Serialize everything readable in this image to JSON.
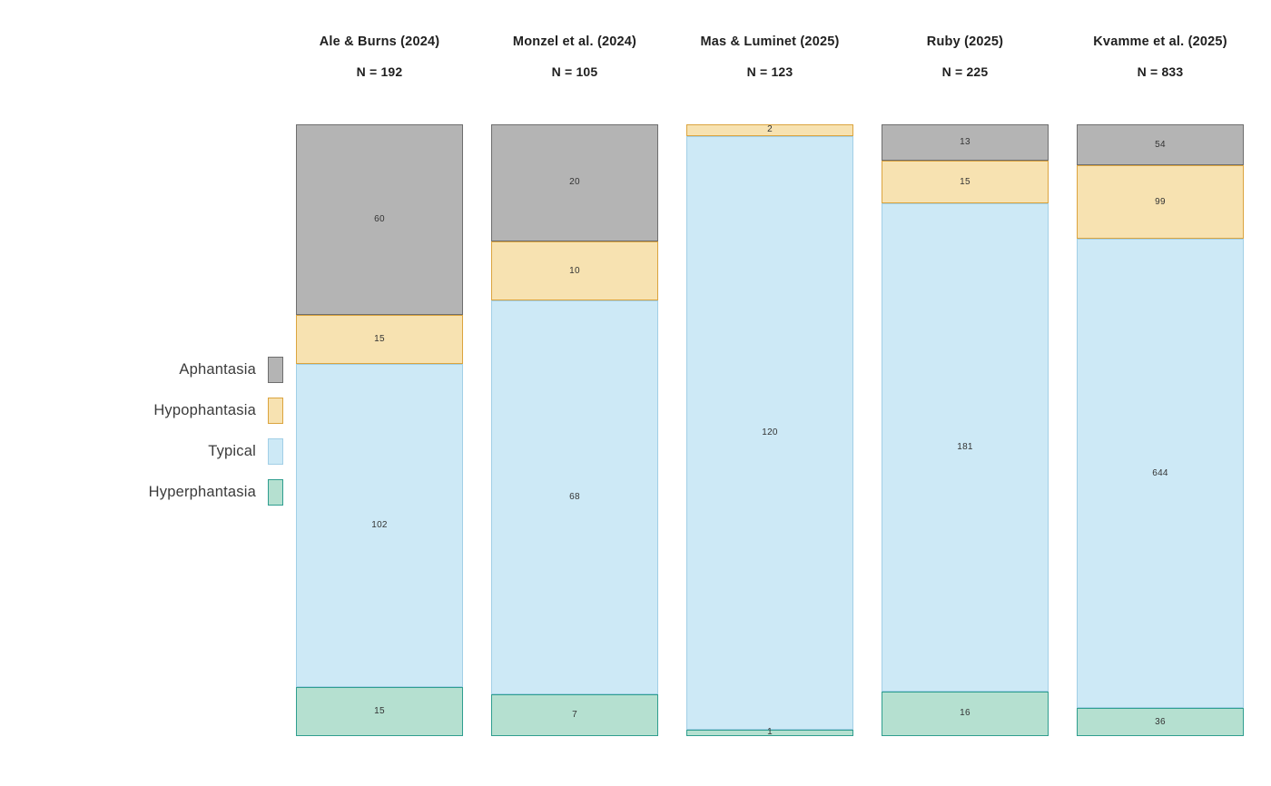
{
  "legend": {
    "items": [
      {
        "key": "aphantasia",
        "label": "Aphantasia",
        "fill": "#b4b4b4",
        "border": "#6e6e6e"
      },
      {
        "key": "hypophantasia",
        "label": "Hypophantasia",
        "fill": "#f7e2b1",
        "border": "#dba43e"
      },
      {
        "key": "typical",
        "label": "Typical",
        "fill": "#cde9f6",
        "border": "#a2cfe6"
      },
      {
        "key": "hyperphantasia",
        "label": "Hyperphantasia",
        "fill": "#b5e0d0",
        "border": "#2f9e8f"
      }
    ]
  },
  "chart_data": {
    "type": "bar",
    "subtype": "100-percent-stacked-columns",
    "title": "",
    "xlabel": "",
    "ylabel": "",
    "grid": false,
    "legend_position": "left",
    "categories": [
      "Aphantasia",
      "Hypophantasia",
      "Typical",
      "Hyperphantasia"
    ],
    "category_colors": [
      "#b4b4b4",
      "#f7e2b1",
      "#cde9f6",
      "#b5e0d0"
    ],
    "category_border_colors": [
      "#6e6e6e",
      "#dba43e",
      "#a2cfe6",
      "#2f9e8f"
    ],
    "studies": [
      {
        "label": "Ale & Burns (2024)",
        "n_label": "N = 192",
        "n": 192,
        "values": [
          60,
          15,
          102,
          15
        ]
      },
      {
        "label": "Monzel et al. (2024)",
        "n_label": "N = 105",
        "n": 105,
        "values": [
          20,
          10,
          68,
          7
        ]
      },
      {
        "label": "Mas & Luminet (2025)",
        "n_label": "N = 123",
        "n": 123,
        "values": [
          0,
          2,
          120,
          1
        ]
      },
      {
        "label": "Ruby (2025)",
        "n_label": "N = 225",
        "n": 225,
        "values": [
          13,
          15,
          181,
          16
        ]
      },
      {
        "label": "Kvamme et al. (2025)",
        "n_label": "N = 833",
        "n": 833,
        "values": [
          54,
          99,
          644,
          36
        ]
      }
    ]
  }
}
